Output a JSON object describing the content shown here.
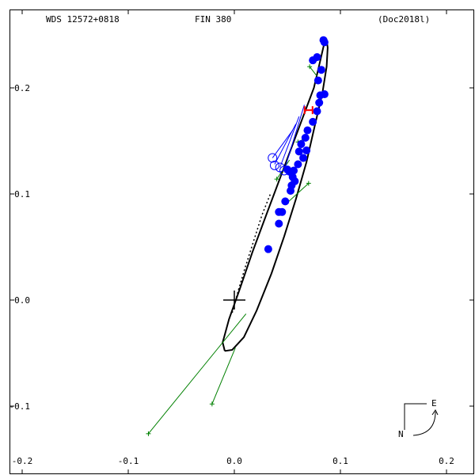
{
  "header": {
    "left": "WDS 12572+0818",
    "center": "FIN 380",
    "right": "(Doc2018l)"
  },
  "compass": {
    "east_label": "E",
    "north_label": "N"
  },
  "colors": {
    "axes": "#000000",
    "orbit": "#000000",
    "observed": "#0000ff",
    "residual": "#008000",
    "hipparcos": "#ff0000"
  },
  "chart_data": {
    "type": "scatter",
    "title": "",
    "xlabel": "",
    "ylabel": "",
    "xlim": [
      -0.2,
      0.2
    ],
    "ylim": [
      -0.15,
      0.25
    ],
    "x_ticks": [
      -0.2,
      -0.1,
      0.0,
      0.1,
      0.2
    ],
    "x_tick_labels": [
      "-0.2",
      "-0.1",
      "0.0",
      "0.1",
      "0.2"
    ],
    "y_ticks": [
      0.2,
      0.1,
      0.0,
      -0.1
    ],
    "y_tick_labels": [
      "0.2",
      "0.1",
      "0.0",
      "-0.1"
    ],
    "grid": false,
    "orbit": [
      [
        -0.009,
        -0.048
      ],
      [
        -0.011,
        -0.04
      ],
      [
        -0.005,
        -0.018
      ],
      [
        0.005,
        0.01
      ],
      [
        0.017,
        0.045
      ],
      [
        0.03,
        0.08
      ],
      [
        0.045,
        0.12
      ],
      [
        0.06,
        0.16
      ],
      [
        0.075,
        0.2
      ],
      [
        0.082,
        0.23
      ],
      [
        0.085,
        0.243
      ],
      [
        0.087,
        0.245
      ],
      [
        0.088,
        0.238
      ],
      [
        0.087,
        0.22
      ],
      [
        0.083,
        0.195
      ],
      [
        0.076,
        0.165
      ],
      [
        0.068,
        0.13
      ],
      [
        0.058,
        0.095
      ],
      [
        0.047,
        0.06
      ],
      [
        0.035,
        0.025
      ],
      [
        0.021,
        -0.01
      ],
      [
        0.009,
        -0.035
      ],
      [
        -0.002,
        -0.047
      ],
      [
        -0.009,
        -0.048
      ]
    ],
    "dotted_orbit": [
      [
        -0.002,
        -0.012
      ],
      [
        0.004,
        0.01
      ],
      [
        0.01,
        0.03
      ],
      [
        0.018,
        0.055
      ],
      [
        0.026,
        0.08
      ],
      [
        0.034,
        0.1
      ]
    ],
    "observations": [
      [
        0.084,
        0.245
      ],
      [
        0.078,
        0.229
      ],
      [
        0.074,
        0.226
      ],
      [
        0.082,
        0.217
      ],
      [
        0.079,
        0.207
      ],
      [
        0.085,
        0.194
      ],
      [
        0.081,
        0.193
      ],
      [
        0.08,
        0.186
      ],
      [
        0.078,
        0.178
      ],
      [
        0.074,
        0.168
      ],
      [
        0.069,
        0.16
      ],
      [
        0.067,
        0.153
      ],
      [
        0.063,
        0.147
      ],
      [
        0.061,
        0.14
      ],
      [
        0.068,
        0.141
      ],
      [
        0.065,
        0.134
      ],
      [
        0.06,
        0.128
      ],
      [
        0.056,
        0.122
      ],
      [
        0.052,
        0.121
      ],
      [
        0.055,
        0.116
      ],
      [
        0.057,
        0.112
      ],
      [
        0.054,
        0.108
      ],
      [
        0.05,
        0.123
      ],
      [
        0.053,
        0.103
      ],
      [
        0.048,
        0.093
      ],
      [
        0.045,
        0.083
      ],
      [
        0.042,
        0.083
      ],
      [
        0.042,
        0.072
      ],
      [
        0.032,
        0.048
      ],
      [
        0.085,
        0.243
      ]
    ],
    "open_circles": [
      [
        0.036,
        0.134
      ],
      [
        0.038,
        0.127
      ],
      [
        0.043,
        0.125
      ],
      [
        0.047,
        0.122
      ]
    ],
    "residual_segments": [
      [
        [
          0.071,
          0.22
        ],
        [
          0.078,
          0.211
        ]
      ],
      [
        [
          0.06,
          0.149
        ],
        [
          0.066,
          0.152
        ]
      ],
      [
        [
          0.04,
          0.114
        ],
        [
          0.052,
          0.132
        ]
      ],
      [
        [
          0.07,
          0.11
        ],
        [
          0.048,
          0.09
        ]
      ],
      [
        [
          0.011,
          -0.013
        ],
        [
          -0.081,
          -0.126
        ]
      ],
      [
        [
          0.001,
          -0.045
        ],
        [
          -0.021,
          -0.098
        ]
      ]
    ],
    "residual_markers": [
      [
        0.071,
        0.22
      ],
      [
        0.06,
        0.149
      ],
      [
        0.04,
        0.114
      ],
      [
        0.07,
        0.11
      ],
      [
        -0.081,
        -0.126
      ],
      [
        -0.021,
        -0.098
      ]
    ],
    "blue_lines": [
      [
        [
          0.036,
          0.134
        ],
        [
          0.055,
          0.16
        ]
      ],
      [
        [
          0.038,
          0.128
        ],
        [
          0.058,
          0.166
        ]
      ],
      [
        [
          0.043,
          0.125
        ],
        [
          0.061,
          0.173
        ]
      ],
      [
        [
          0.047,
          0.122
        ],
        [
          0.066,
          0.184
        ]
      ]
    ],
    "hipparcos_point": [
      0.07,
      0.179
    ],
    "origin": [
      0.0,
      0.0
    ]
  }
}
